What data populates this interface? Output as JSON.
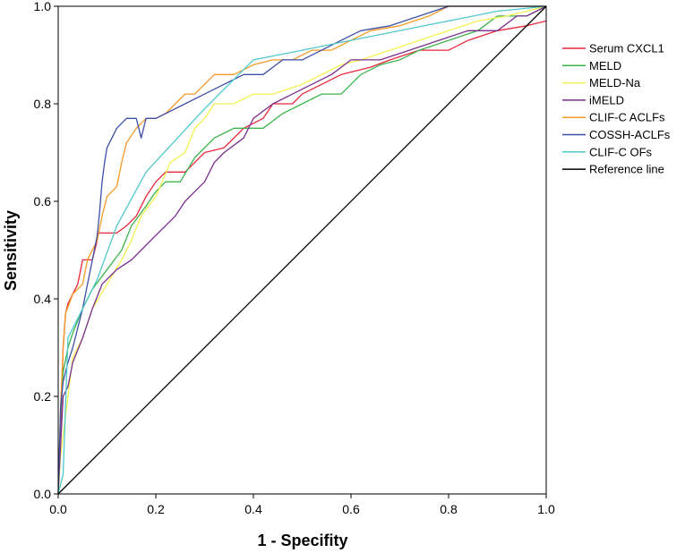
{
  "chart_data": {
    "type": "line",
    "title": "",
    "xlabel": "1 - Specifity",
    "ylabel": "Sensitivity",
    "xlim": [
      0,
      1
    ],
    "ylim": [
      0,
      1
    ],
    "xticks": [
      "0.0",
      "0.2",
      "0.4",
      "0.6",
      "0.8",
      "1.0"
    ],
    "yticks": [
      "0.0",
      "0.2",
      "0.4",
      "0.6",
      "0.8",
      "1.0"
    ],
    "grid": false,
    "legend_position": "right",
    "series": [
      {
        "name": "Serum CXCL1",
        "color": "#e8283c",
        "points": [
          [
            0,
            0
          ],
          [
            0.005,
            0.11
          ],
          [
            0.01,
            0.3
          ],
          [
            0.015,
            0.37
          ],
          [
            0.02,
            0.39
          ],
          [
            0.03,
            0.41
          ],
          [
            0.04,
            0.43
          ],
          [
            0.05,
            0.48
          ],
          [
            0.07,
            0.48
          ],
          [
            0.08,
            0.52
          ],
          [
            0.08,
            0.535
          ],
          [
            0.12,
            0.535
          ],
          [
            0.14,
            0.55
          ],
          [
            0.16,
            0.57
          ],
          [
            0.18,
            0.61
          ],
          [
            0.2,
            0.64
          ],
          [
            0.22,
            0.66
          ],
          [
            0.26,
            0.66
          ],
          [
            0.28,
            0.68
          ],
          [
            0.3,
            0.7
          ],
          [
            0.34,
            0.71
          ],
          [
            0.38,
            0.75
          ],
          [
            0.42,
            0.77
          ],
          [
            0.44,
            0.8
          ],
          [
            0.48,
            0.8
          ],
          [
            0.5,
            0.82
          ],
          [
            0.54,
            0.84
          ],
          [
            0.58,
            0.86
          ],
          [
            0.64,
            0.875
          ],
          [
            0.68,
            0.89
          ],
          [
            0.74,
            0.91
          ],
          [
            0.8,
            0.91
          ],
          [
            0.84,
            0.93
          ],
          [
            0.9,
            0.95
          ],
          [
            0.96,
            0.96
          ],
          [
            1,
            0.97
          ]
        ]
      },
      {
        "name": "MELD",
        "color": "#3cb44b",
        "points": [
          [
            0,
            0
          ],
          [
            0.005,
            0.16
          ],
          [
            0.01,
            0.25
          ],
          [
            0.02,
            0.3
          ],
          [
            0.03,
            0.33
          ],
          [
            0.05,
            0.38
          ],
          [
            0.07,
            0.42
          ],
          [
            0.1,
            0.46
          ],
          [
            0.13,
            0.5
          ],
          [
            0.15,
            0.55
          ],
          [
            0.18,
            0.59
          ],
          [
            0.2,
            0.62
          ],
          [
            0.22,
            0.64
          ],
          [
            0.25,
            0.64
          ],
          [
            0.28,
            0.69
          ],
          [
            0.32,
            0.73
          ],
          [
            0.36,
            0.75
          ],
          [
            0.42,
            0.75
          ],
          [
            0.46,
            0.78
          ],
          [
            0.5,
            0.8
          ],
          [
            0.54,
            0.82
          ],
          [
            0.58,
            0.82
          ],
          [
            0.62,
            0.86
          ],
          [
            0.66,
            0.88
          ],
          [
            0.7,
            0.89
          ],
          [
            0.74,
            0.91
          ],
          [
            0.8,
            0.93
          ],
          [
            0.86,
            0.95
          ],
          [
            0.9,
            0.98
          ],
          [
            0.96,
            0.98
          ],
          [
            1,
            1
          ]
        ]
      },
      {
        "name": "MELD-Na",
        "color": "#f2f250",
        "points": [
          [
            0,
            0
          ],
          [
            0.005,
            0.08
          ],
          [
            0.01,
            0.12
          ],
          [
            0.02,
            0.2
          ],
          [
            0.03,
            0.28
          ],
          [
            0.05,
            0.32
          ],
          [
            0.07,
            0.38
          ],
          [
            0.1,
            0.43
          ],
          [
            0.13,
            0.48
          ],
          [
            0.15,
            0.52
          ],
          [
            0.17,
            0.57
          ],
          [
            0.2,
            0.61
          ],
          [
            0.23,
            0.68
          ],
          [
            0.26,
            0.7
          ],
          [
            0.28,
            0.75
          ],
          [
            0.3,
            0.77
          ],
          [
            0.32,
            0.8
          ],
          [
            0.36,
            0.8
          ],
          [
            0.4,
            0.82
          ],
          [
            0.44,
            0.82
          ],
          [
            0.5,
            0.84
          ],
          [
            0.54,
            0.86
          ],
          [
            0.58,
            0.88
          ],
          [
            0.62,
            0.89
          ],
          [
            0.68,
            0.91
          ],
          [
            0.74,
            0.93
          ],
          [
            0.8,
            0.95
          ],
          [
            0.86,
            0.97
          ],
          [
            0.92,
            0.98
          ],
          [
            1,
            1
          ]
        ]
      },
      {
        "name": "iMELD",
        "color": "#7a2f8f",
        "points": [
          [
            0,
            0
          ],
          [
            0.005,
            0.1
          ],
          [
            0.01,
            0.2
          ],
          [
            0.02,
            0.22
          ],
          [
            0.03,
            0.27
          ],
          [
            0.05,
            0.32
          ],
          [
            0.07,
            0.38
          ],
          [
            0.09,
            0.43
          ],
          [
            0.12,
            0.46
          ],
          [
            0.15,
            0.48
          ],
          [
            0.17,
            0.5
          ],
          [
            0.2,
            0.53
          ],
          [
            0.22,
            0.55
          ],
          [
            0.24,
            0.57
          ],
          [
            0.26,
            0.6
          ],
          [
            0.28,
            0.62
          ],
          [
            0.3,
            0.64
          ],
          [
            0.32,
            0.68
          ],
          [
            0.34,
            0.7
          ],
          [
            0.38,
            0.73
          ],
          [
            0.4,
            0.77
          ],
          [
            0.44,
            0.8
          ],
          [
            0.48,
            0.82
          ],
          [
            0.52,
            0.84
          ],
          [
            0.56,
            0.86
          ],
          [
            0.6,
            0.89
          ],
          [
            0.66,
            0.89
          ],
          [
            0.72,
            0.91
          ],
          [
            0.78,
            0.93
          ],
          [
            0.84,
            0.95
          ],
          [
            0.9,
            0.95
          ],
          [
            0.94,
            0.98
          ],
          [
            0.96,
            0.98
          ],
          [
            1,
            1
          ]
        ]
      },
      {
        "name": "CLIF-C ACLFs",
        "color": "#f59b25",
        "points": [
          [
            0,
            0
          ],
          [
            0.005,
            0.18
          ],
          [
            0.01,
            0.3
          ],
          [
            0.015,
            0.37
          ],
          [
            0.03,
            0.41
          ],
          [
            0.05,
            0.43
          ],
          [
            0.06,
            0.48
          ],
          [
            0.08,
            0.52
          ],
          [
            0.09,
            0.57
          ],
          [
            0.1,
            0.61
          ],
          [
            0.12,
            0.63
          ],
          [
            0.13,
            0.68
          ],
          [
            0.14,
            0.72
          ],
          [
            0.16,
            0.75
          ],
          [
            0.18,
            0.77
          ],
          [
            0.2,
            0.77
          ],
          [
            0.22,
            0.78
          ],
          [
            0.24,
            0.8
          ],
          [
            0.26,
            0.82
          ],
          [
            0.28,
            0.82
          ],
          [
            0.3,
            0.84
          ],
          [
            0.32,
            0.86
          ],
          [
            0.36,
            0.86
          ],
          [
            0.4,
            0.88
          ],
          [
            0.44,
            0.89
          ],
          [
            0.48,
            0.89
          ],
          [
            0.52,
            0.91
          ],
          [
            0.56,
            0.91
          ],
          [
            0.6,
            0.93
          ],
          [
            0.64,
            0.95
          ],
          [
            0.7,
            0.96
          ],
          [
            0.76,
            0.98
          ],
          [
            0.8,
            1
          ],
          [
            1,
            1
          ]
        ]
      },
      {
        "name": "COSSH-ACLFs",
        "color": "#3f4fa8",
        "points": [
          [
            0,
            0
          ],
          [
            0.005,
            0.18
          ],
          [
            0.01,
            0.23
          ],
          [
            0.02,
            0.27
          ],
          [
            0.03,
            0.3
          ],
          [
            0.04,
            0.34
          ],
          [
            0.05,
            0.38
          ],
          [
            0.06,
            0.43
          ],
          [
            0.07,
            0.48
          ],
          [
            0.08,
            0.53
          ],
          [
            0.085,
            0.58
          ],
          [
            0.09,
            0.64
          ],
          [
            0.095,
            0.68
          ],
          [
            0.1,
            0.71
          ],
          [
            0.11,
            0.73
          ],
          [
            0.12,
            0.75
          ],
          [
            0.14,
            0.77
          ],
          [
            0.16,
            0.77
          ],
          [
            0.17,
            0.73
          ],
          [
            0.18,
            0.77
          ],
          [
            0.2,
            0.77
          ],
          [
            0.22,
            0.78
          ],
          [
            0.26,
            0.8
          ],
          [
            0.3,
            0.82
          ],
          [
            0.34,
            0.84
          ],
          [
            0.38,
            0.86
          ],
          [
            0.42,
            0.86
          ],
          [
            0.46,
            0.89
          ],
          [
            0.5,
            0.89
          ],
          [
            0.54,
            0.91
          ],
          [
            0.58,
            0.93
          ],
          [
            0.62,
            0.95
          ],
          [
            0.68,
            0.96
          ],
          [
            0.74,
            0.98
          ],
          [
            0.8,
            1
          ],
          [
            1,
            1
          ]
        ]
      },
      {
        "name": "CLIF-C OFs",
        "color": "#4fc8cc",
        "points": [
          [
            0,
            0
          ],
          [
            0.01,
            0.04
          ],
          [
            0.02,
            0.32
          ],
          [
            0.05,
            0.38
          ],
          [
            0.08,
            0.44
          ],
          [
            0.12,
            0.55
          ],
          [
            0.18,
            0.66
          ],
          [
            0.3,
            0.79
          ],
          [
            0.4,
            0.89
          ],
          [
            0.5,
            0.91
          ],
          [
            0.6,
            0.93
          ],
          [
            0.75,
            0.96
          ],
          [
            0.9,
            0.99
          ],
          [
            1,
            1
          ]
        ]
      },
      {
        "name": "Reference line",
        "color": "#000000",
        "points": [
          [
            0,
            0
          ],
          [
            1,
            1
          ]
        ]
      }
    ]
  }
}
